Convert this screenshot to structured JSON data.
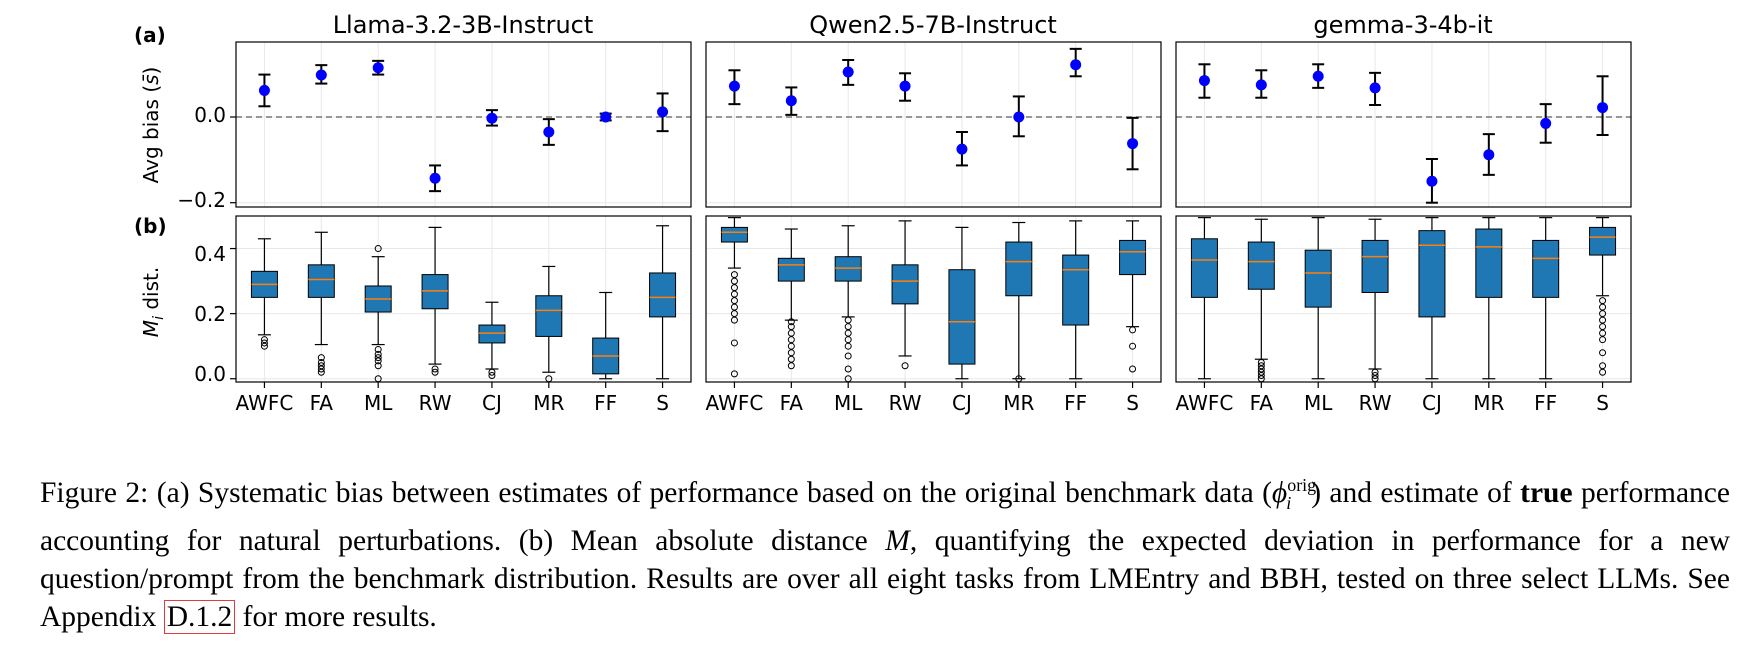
{
  "figure": {
    "panel_labels": [
      "(a)",
      "(b)"
    ],
    "ylabel_a": "Avg bias (s̄)",
    "ylabel_b": "M_i dist.",
    "yticks_a": [
      "0.0",
      "−0.2"
    ],
    "yticks_b": [
      "0.0",
      "0.2",
      "0.4"
    ]
  },
  "chart_data": [
    {
      "type": "scatter",
      "title": "Llama-3.2-3B-Instruct",
      "categories": [
        "AWFC",
        "FA",
        "ML",
        "RW",
        "CJ",
        "MR",
        "FF",
        "S"
      ],
      "values": [
        0.062,
        0.098,
        0.115,
        -0.143,
        -0.003,
        -0.035,
        0.0,
        0.012
      ],
      "err_low": [
        0.025,
        0.078,
        0.099,
        -0.173,
        -0.02,
        -0.065,
        -0.008,
        -0.033
      ],
      "err_high": [
        0.099,
        0.121,
        0.131,
        -0.113,
        0.016,
        -0.005,
        0.008,
        0.055
      ],
      "ylim": [
        -0.21,
        0.175
      ],
      "reference_line": 0.0,
      "ylabel": "Avg bias (s̄)"
    },
    {
      "type": "scatter",
      "title": "Qwen2.5-7B-Instruct",
      "categories": [
        "AWFC",
        "FA",
        "ML",
        "RW",
        "CJ",
        "MR",
        "FF",
        "S"
      ],
      "values": [
        0.072,
        0.038,
        0.105,
        0.072,
        -0.075,
        0.0,
        0.122,
        -0.062
      ],
      "err_low": [
        0.03,
        0.005,
        0.075,
        0.038,
        -0.113,
        -0.045,
        0.095,
        -0.122
      ],
      "err_high": [
        0.109,
        0.069,
        0.133,
        0.102,
        -0.035,
        0.048,
        0.159,
        -0.002
      ],
      "ylim": [
        -0.21,
        0.175
      ],
      "reference_line": 0.0
    },
    {
      "type": "scatter",
      "title": "gemma-3-4b-it",
      "categories": [
        "AWFC",
        "FA",
        "ML",
        "RW",
        "CJ",
        "MR",
        "FF",
        "S"
      ],
      "values": [
        0.085,
        0.075,
        0.095,
        0.068,
        -0.15,
        -0.088,
        -0.015,
        0.022
      ],
      "err_low": [
        0.045,
        0.045,
        0.068,
        0.028,
        -0.2,
        -0.135,
        -0.06,
        -0.042
      ],
      "err_high": [
        0.123,
        0.109,
        0.123,
        0.103,
        -0.098,
        -0.04,
        0.03,
        0.095
      ],
      "ylim": [
        -0.21,
        0.175
      ],
      "reference_line": 0.0
    },
    {
      "type": "box",
      "title": "Llama-3.2-3B-Instruct",
      "categories": [
        "AWFC",
        "FA",
        "ML",
        "RW",
        "CJ",
        "MR",
        "FF",
        "S"
      ],
      "whisker_low": [
        0.135,
        0.105,
        0.105,
        0.045,
        0.03,
        0.02,
        0.0,
        0.0
      ],
      "q1": [
        0.25,
        0.25,
        0.205,
        0.215,
        0.11,
        0.13,
        0.015,
        0.19
      ],
      "median": [
        0.29,
        0.305,
        0.245,
        0.27,
        0.14,
        0.21,
        0.07,
        0.25
      ],
      "q3": [
        0.33,
        0.35,
        0.285,
        0.32,
        0.165,
        0.255,
        0.125,
        0.325
      ],
      "whisker_high": [
        0.43,
        0.45,
        0.375,
        0.465,
        0.235,
        0.345,
        0.265,
        0.47
      ],
      "outliers": [
        [
          0.1,
          0.11,
          0.12
        ],
        [
          0.02,
          0.03,
          0.04,
          0.05,
          0.065
        ],
        [
          0.0,
          0.04,
          0.055,
          0.065,
          0.075,
          0.09,
          0.4
        ],
        [
          0.02,
          0.03
        ],
        [
          0.01,
          0.02
        ],
        [
          0.0
        ],
        [],
        []
      ],
      "ylim": [
        -0.01,
        0.5
      ],
      "ylabel": "M_i dist."
    },
    {
      "type": "box",
      "title": "Qwen2.5-7B-Instruct",
      "categories": [
        "AWFC",
        "FA",
        "ML",
        "RW",
        "CJ",
        "MR",
        "FF",
        "S"
      ],
      "whisker_low": [
        0.34,
        0.18,
        0.19,
        0.07,
        0.0,
        0.0,
        0.0,
        0.16
      ],
      "q1": [
        0.42,
        0.3,
        0.3,
        0.23,
        0.045,
        0.255,
        0.165,
        0.32
      ],
      "median": [
        0.45,
        0.35,
        0.34,
        0.3,
        0.175,
        0.36,
        0.335,
        0.39
      ],
      "q3": [
        0.465,
        0.37,
        0.375,
        0.35,
        0.335,
        0.42,
        0.38,
        0.425
      ],
      "whisker_high": [
        0.495,
        0.46,
        0.47,
        0.485,
        0.465,
        0.48,
        0.485,
        0.485
      ],
      "outliers": [
        [
          0.015,
          0.11,
          0.18,
          0.2,
          0.22,
          0.24,
          0.26,
          0.28,
          0.3,
          0.32
        ],
        [
          0.04,
          0.06,
          0.08,
          0.1,
          0.12,
          0.14,
          0.16,
          0.175
        ],
        [
          0.0,
          0.03,
          0.07,
          0.1,
          0.12,
          0.14,
          0.16,
          0.18
        ],
        [
          0.04
        ],
        [],
        [
          0.0
        ],
        [],
        [
          0.03,
          0.1,
          0.15
        ]
      ],
      "ylim": [
        -0.01,
        0.5
      ]
    },
    {
      "type": "box",
      "title": "gemma-3-4b-it",
      "categories": [
        "AWFC",
        "FA",
        "ML",
        "RW",
        "CJ",
        "MR",
        "FF",
        "S"
      ],
      "whisker_low": [
        0.0,
        0.06,
        0.0,
        0.03,
        0.0,
        0.0,
        0.0,
        0.255
      ],
      "q1": [
        0.25,
        0.275,
        0.22,
        0.265,
        0.19,
        0.25,
        0.25,
        0.38
      ],
      "median": [
        0.365,
        0.36,
        0.325,
        0.375,
        0.41,
        0.405,
        0.37,
        0.435
      ],
      "q3": [
        0.43,
        0.42,
        0.395,
        0.425,
        0.455,
        0.46,
        0.425,
        0.465
      ],
      "whisker_high": [
        0.495,
        0.49,
        0.495,
        0.49,
        0.495,
        0.495,
        0.495,
        0.495
      ],
      "outliers": [
        [],
        [
          0.0,
          0.01,
          0.02,
          0.03,
          0.04,
          0.05
        ],
        [],
        [
          0.0,
          0.01,
          0.02
        ],
        [],
        [],
        [],
        [
          0.02,
          0.04,
          0.08,
          0.12,
          0.14,
          0.16,
          0.18,
          0.2,
          0.22,
          0.24
        ]
      ],
      "ylim": [
        -0.01,
        0.5
      ]
    }
  ],
  "caption": {
    "s1": "Figure 2: (a) Systematic bias between estimates of performance based on the original benchmark data (",
    "phi": "ϕ",
    "sup": "orig",
    "sub": "i",
    "s2": ") and estimate of ",
    "bold": "true",
    "s3": " performance accounting for natural perturbations. (b) Mean absolute distance ",
    "M": "M",
    "s4": ", quantifying the expected deviation in performance for a new question/prompt from the benchmark distribution. Results are over all eight tasks from LMEntry and BBH, tested on three select LLMs. See Appendix ",
    "ref": "D.1.2",
    "s5": " for more results."
  },
  "colors": {
    "point": "#0000ff",
    "box": "#1f77b4",
    "median": "#ff7f0e",
    "axis": "#000000"
  }
}
